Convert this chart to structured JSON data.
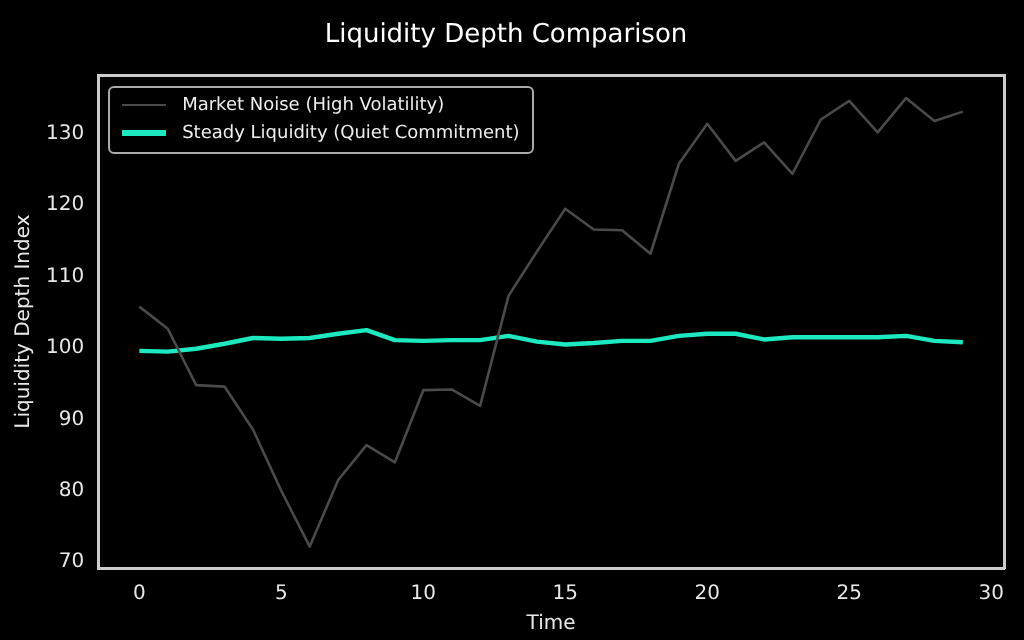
{
  "chart_data": {
    "type": "line",
    "title": "Liquidity Depth Comparison",
    "xlabel": "Time",
    "ylabel": "Liquidity Depth Index",
    "x": [
      0,
      1,
      2,
      3,
      4,
      5,
      6,
      7,
      8,
      9,
      10,
      11,
      12,
      13,
      14,
      15,
      16,
      17,
      18,
      19,
      20,
      21,
      22,
      23,
      24,
      25,
      26,
      27,
      28,
      29
    ],
    "series": [
      {
        "name": "Market Noise (High Volatility)",
        "color": "#4a4a4a",
        "values": [
          105.8,
          102.7,
          94.8,
          94.6,
          88.6,
          80,
          72.2,
          81.5,
          86.4,
          84,
          94.1,
          94.2,
          91.9,
          107.3,
          113.5,
          119.5,
          116.6,
          116.5,
          113.2,
          125.8,
          131.4,
          126.2,
          128.8,
          124.4,
          132,
          134.6,
          130.2,
          135,
          131.8,
          133.1
        ]
      },
      {
        "name": "Steady Liquidity (Quiet Commitment)",
        "color": "#1de9c0",
        "values": [
          99.6,
          99.5,
          99.9,
          100.6,
          101.4,
          101.3,
          101.4,
          102,
          102.5,
          101.1,
          101,
          101.1,
          101.1,
          101.7,
          100.9,
          100.5,
          100.7,
          101,
          101,
          101.7,
          102,
          102,
          101.2,
          101.5,
          101.5,
          101.5,
          101.5,
          101.7,
          101,
          100.8
        ]
      }
    ],
    "xlim": [
      -1.45,
      30.45
    ],
    "xticks": [
      0,
      5,
      10,
      15,
      20,
      25,
      30
    ],
    "ylim": [
      69.2,
      138.2
    ],
    "yticks": [
      70,
      80,
      90,
      100,
      110,
      120,
      130
    ],
    "grid": false,
    "legend": "top left",
    "marker": "none",
    "line_style": "solid"
  }
}
